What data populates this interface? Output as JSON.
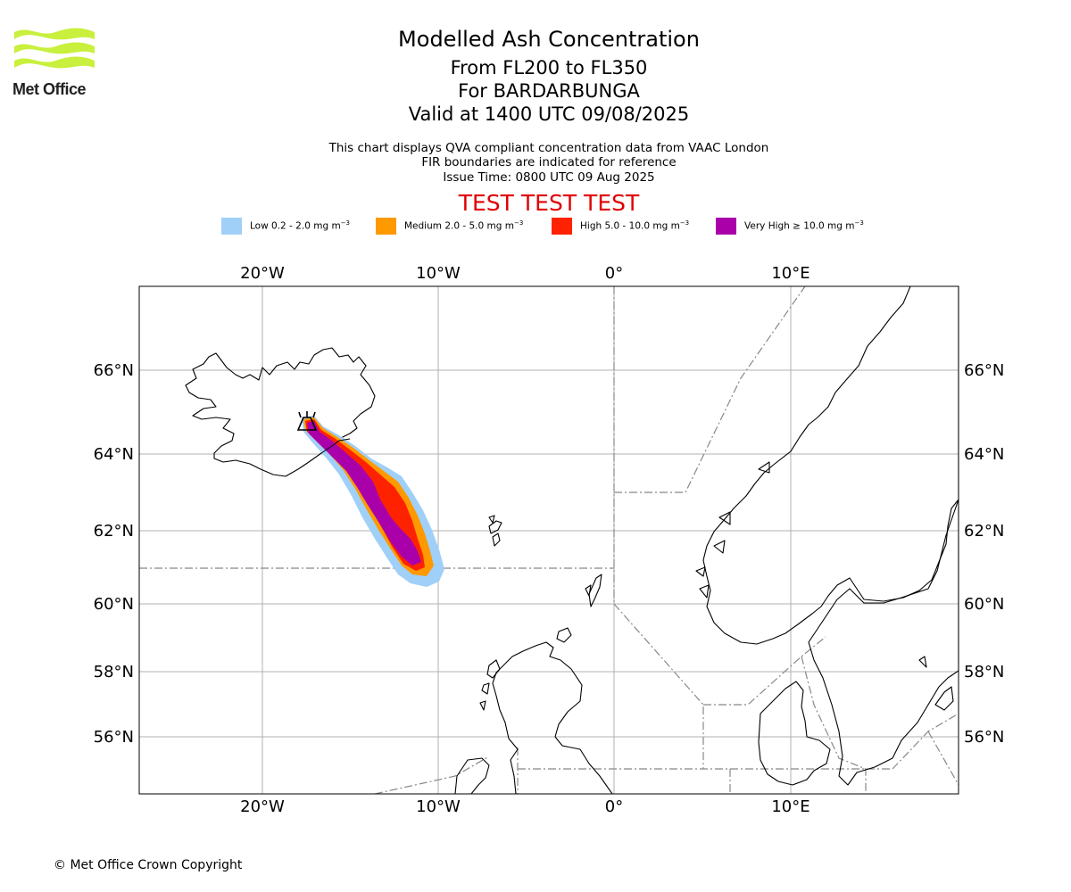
{
  "header": {
    "logo_text": "Met Office",
    "title": "Modelled Ash Concentration",
    "levels": "From FL200 to FL350",
    "volcano": "For BARDARBUNGA",
    "valid": "Valid at 1400 UTC 09/08/2025",
    "note1": "This chart displays QVA compliant concentration data from VAAC London",
    "note2": "FIR boundaries are indicated for reference",
    "issue": "Issue Time: 0800 UTC 09 Aug 2025",
    "test_banner": "TEST TEST TEST"
  },
  "legend": [
    {
      "label": "Low 0.2 - 2.0 mg m",
      "exp": "−3",
      "color": "#a0d0f8"
    },
    {
      "label": "Medium 2.0 - 5.0 mg m",
      "exp": "−3",
      "color": "#ff9900"
    },
    {
      "label": "High 5.0 - 10.0 mg m",
      "exp": "−3",
      "color": "#ff2200"
    },
    {
      "label": "Very High ≥ 10.0 mg m",
      "exp": "−3",
      "color": "#aa00aa"
    }
  ],
  "axes": {
    "lon_labels": [
      "20°W",
      "10°W",
      "0°",
      "10°E"
    ],
    "lat_labels": [
      "66°N",
      "64°N",
      "62°N",
      "60°N",
      "58°N",
      "56°N"
    ]
  },
  "volcano_marker": "volcano-icon",
  "footer": {
    "copyright": "© Met Office Crown Copyright"
  }
}
